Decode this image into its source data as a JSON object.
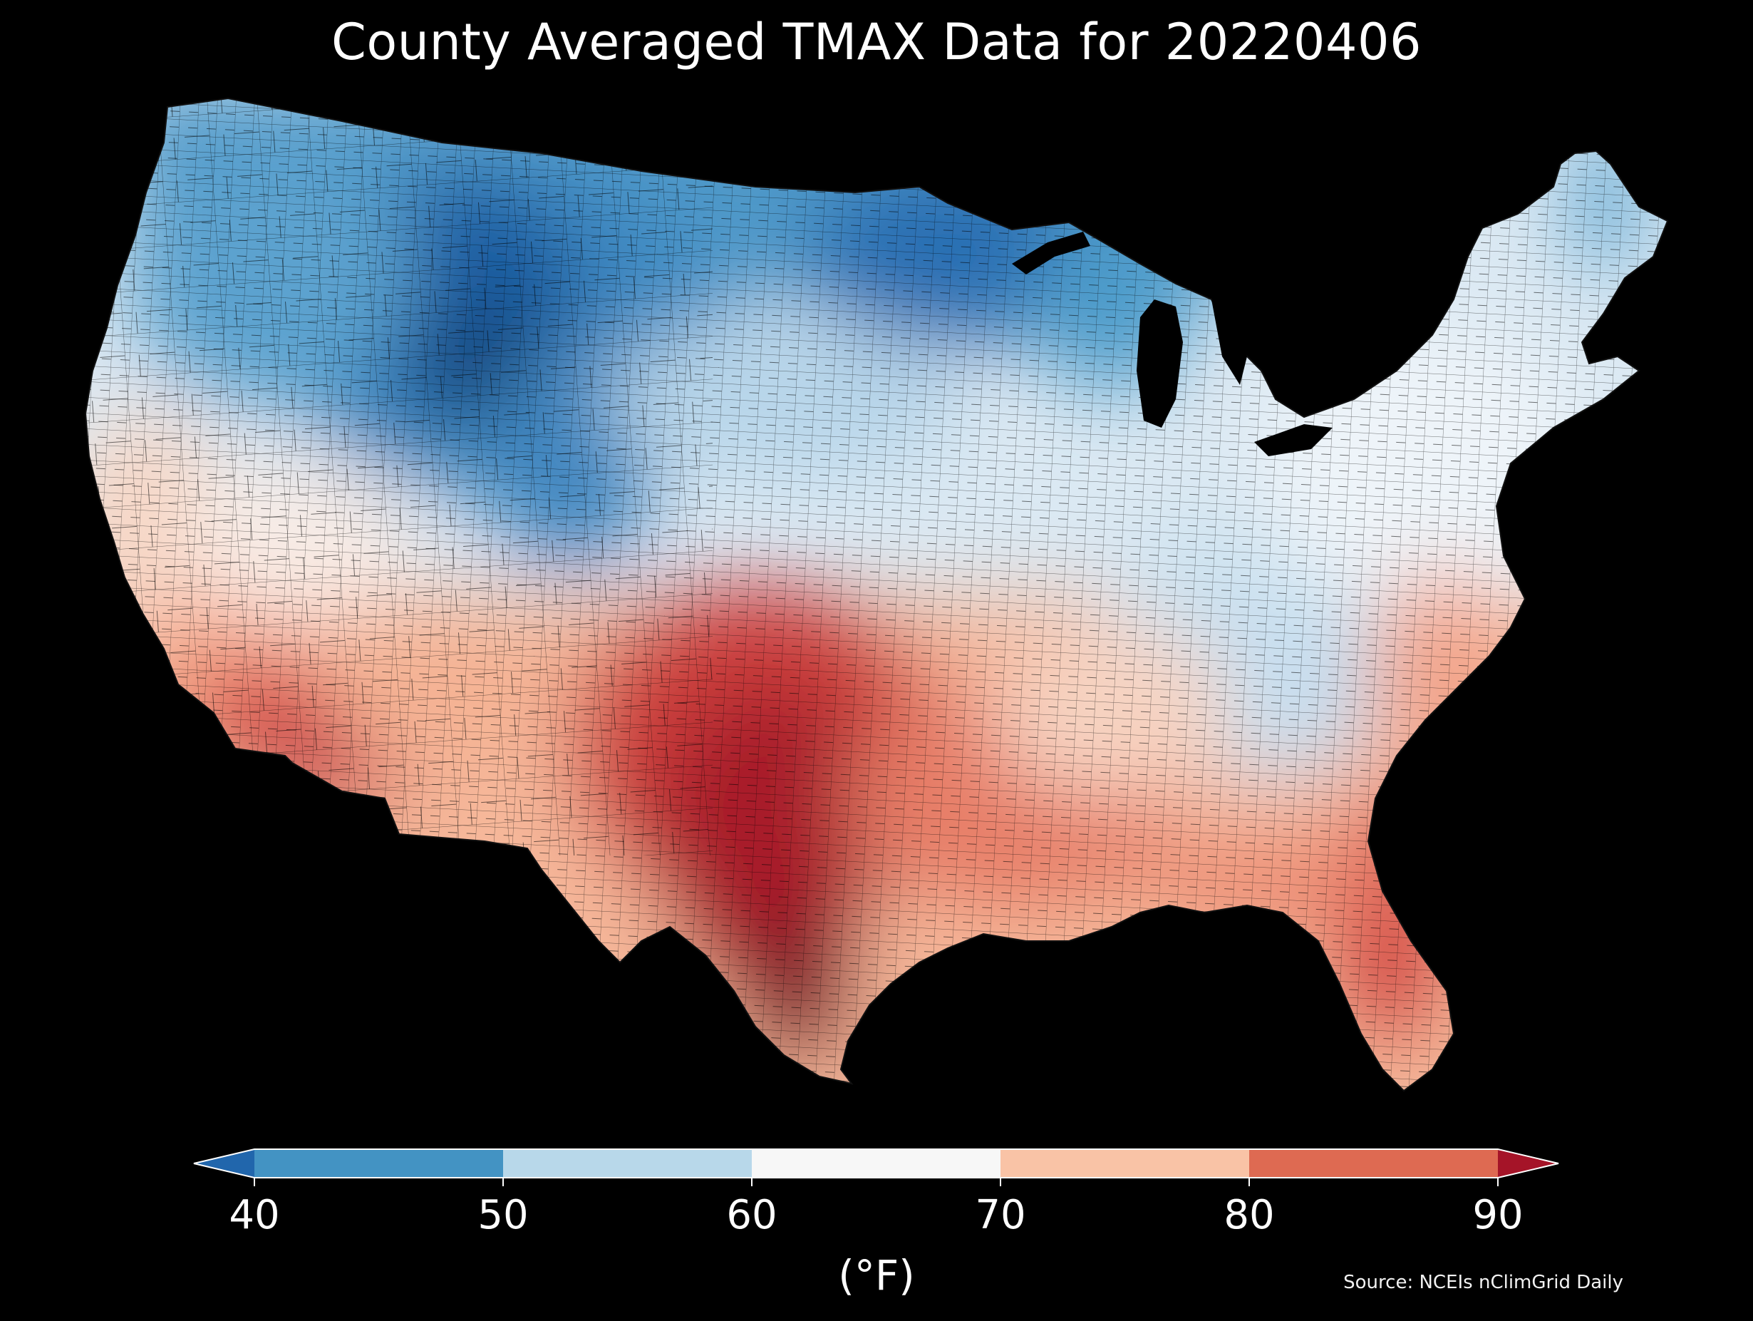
{
  "title": "County Averaged TMAX Data for 20220406",
  "source": "Source: NCEIs nClimGrid Daily",
  "chart_data": {
    "type": "choropleth",
    "title": "County Averaged TMAX Data for 20220406",
    "variable": "TMAX",
    "date": "20220406",
    "colorbar": {
      "label": "(°F)",
      "ticks": [
        40,
        50,
        60,
        70,
        80,
        90
      ],
      "tick_labels": [
        "40",
        "50",
        "60",
        "70",
        "80",
        "90"
      ],
      "extend": "both",
      "orientation": "horizontal",
      "bins": [
        {
          "range": [
            30,
            40
          ],
          "color": "#2166ac"
        },
        {
          "range": [
            40,
            50
          ],
          "color": "#4393c3"
        },
        {
          "range": [
            50,
            60
          ],
          "color": "#b8d8ea"
        },
        {
          "range": [
            60,
            70
          ],
          "color": "#f7f7f7"
        },
        {
          "range": [
            70,
            80
          ],
          "color": "#f9c3a6"
        },
        {
          "range": [
            80,
            90
          ],
          "color": "#de6a52"
        },
        {
          "range": [
            90,
            100
          ],
          "color": "#a51428"
        }
      ]
    },
    "colormap": "RdBu_r",
    "vmin": 30,
    "vmax": 100
  }
}
